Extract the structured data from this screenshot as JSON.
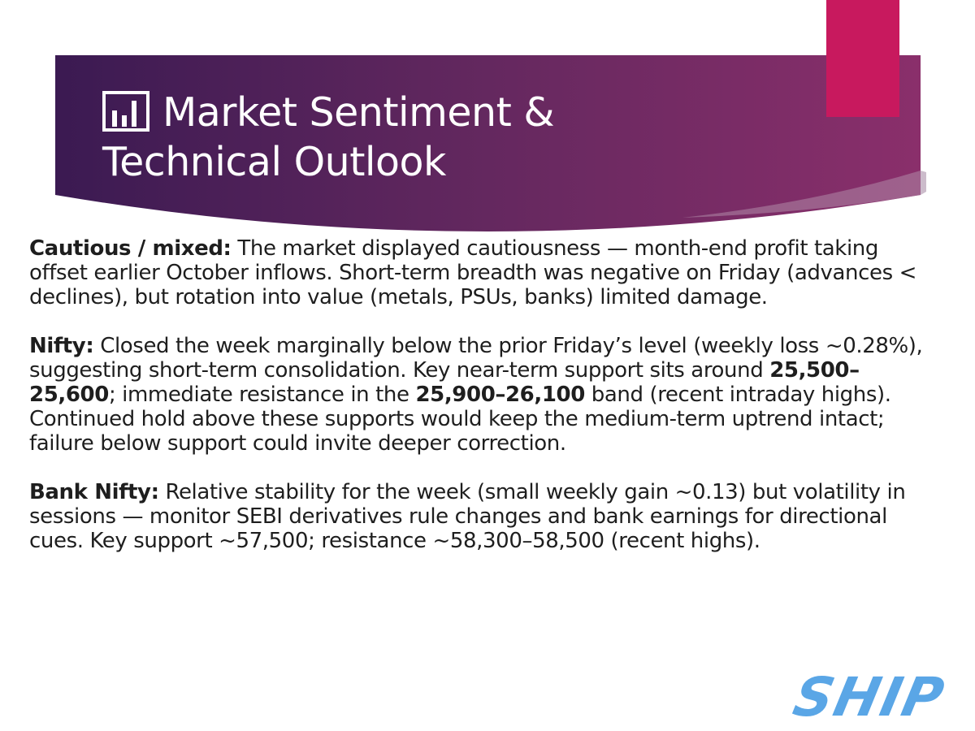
{
  "slide": {
    "title": "Market Sentiment & Technical Outlook",
    "title_icon": "bar-chart-icon",
    "colors": {
      "banner_start": "#3b1a52",
      "banner_end": "#8a2f6b",
      "accent_tab": "#c8195e",
      "logo": "#5aa6e6"
    }
  },
  "sections": [
    {
      "label": "Cautious / mixed:",
      "text": " The market displayed cautiousness — month-end profit taking offset earlier October inflows. Short-term breadth was negative on Friday (advances < declines), but rotation into value (metals, PSUs, banks) limited damage."
    },
    {
      "label": "Nifty:",
      "text_1": " Closed the week marginally below the prior Friday’s level (weekly loss ~0.28%), suggesting short-term consolidation. Key near-term support sits around ",
      "bold_1": "25,500–25,600",
      "text_2": "; immediate resistance in the ",
      "bold_2": "25,900–26,100",
      "text_3": " band (recent intraday highs). Continued hold above these supports would keep the medium-term uptrend intact; failure below support could invite deeper correction."
    },
    {
      "label": "Bank Nifty:",
      "text": " Relative stability for the week (small weekly gain ~0.13) but volatility in sessions — monitor SEBI derivatives rule changes and bank earnings for directional cues. Key support ~57,500; resistance ~58,300–58,500 (recent highs)."
    }
  ],
  "logo": {
    "text": "SHIP"
  }
}
